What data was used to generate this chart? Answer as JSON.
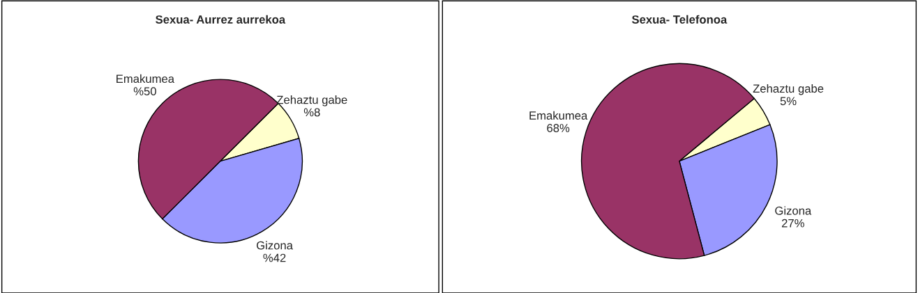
{
  "chart_data": [
    {
      "type": "pie",
      "title": "Sexua- Aurrez aurrekoa",
      "categories": [
        "Zehaztu gabe",
        "Gizona",
        "Emakumea"
      ],
      "values": [
        8,
        42,
        50
      ],
      "colors": [
        "#ffffcc",
        "#9999ff",
        "#993366"
      ],
      "value_labels": [
        "%8",
        "%42",
        "%50"
      ]
    },
    {
      "type": "pie",
      "title": "Sexua- Telefonoa",
      "categories": [
        "Zehaztu gabe",
        "Gizona",
        "Emakumea"
      ],
      "values": [
        5,
        27,
        68
      ],
      "colors": [
        "#ffffcc",
        "#9999ff",
        "#993366"
      ],
      "value_labels": [
        "5%",
        "27%",
        "68%"
      ]
    }
  ]
}
